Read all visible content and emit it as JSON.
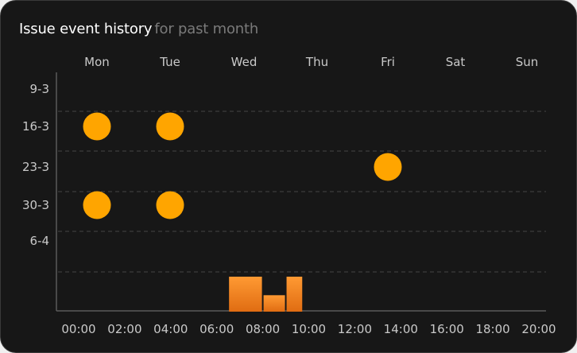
{
  "header": {
    "title": "Issue event history",
    "subtitle": "for past month"
  },
  "colors": {
    "background": "#171717",
    "accent": "#ffa500",
    "bar_top": "#ff9a33",
    "bar_bottom": "#e06c12",
    "label": "#c9c9c9",
    "grid": "#454545"
  },
  "chart_data": [
    {
      "type": "scatter",
      "x_categories": [
        "Mon",
        "Tue",
        "Wed",
        "Thu",
        "Fri",
        "Sat",
        "Sun"
      ],
      "y_categories": [
        "9-3",
        "16-3",
        "23-3",
        "30-3",
        "6-4"
      ],
      "points": [
        {
          "x": "Mon",
          "y": "16-3"
        },
        {
          "x": "Tue",
          "y": "16-3"
        },
        {
          "x": "Fri",
          "y": "23-3"
        },
        {
          "x": "Mon",
          "y": "30-3"
        },
        {
          "x": "Tue",
          "y": "30-3"
        }
      ],
      "grid": "dashed horizontal"
    },
    {
      "type": "bar",
      "x_ticks": [
        "00:00",
        "02:00",
        "04:00",
        "06:00",
        "08:00",
        "10:00",
        "12:00",
        "14:00",
        "16:00",
        "18:00",
        "20:00"
      ],
      "bins": [
        {
          "start": "06:30",
          "end": "08:00",
          "value": 1.0
        },
        {
          "start": "08:00",
          "end": "09:00",
          "value": 0.47
        },
        {
          "start": "09:00",
          "end": "09:45",
          "value": 1.0
        }
      ]
    }
  ]
}
